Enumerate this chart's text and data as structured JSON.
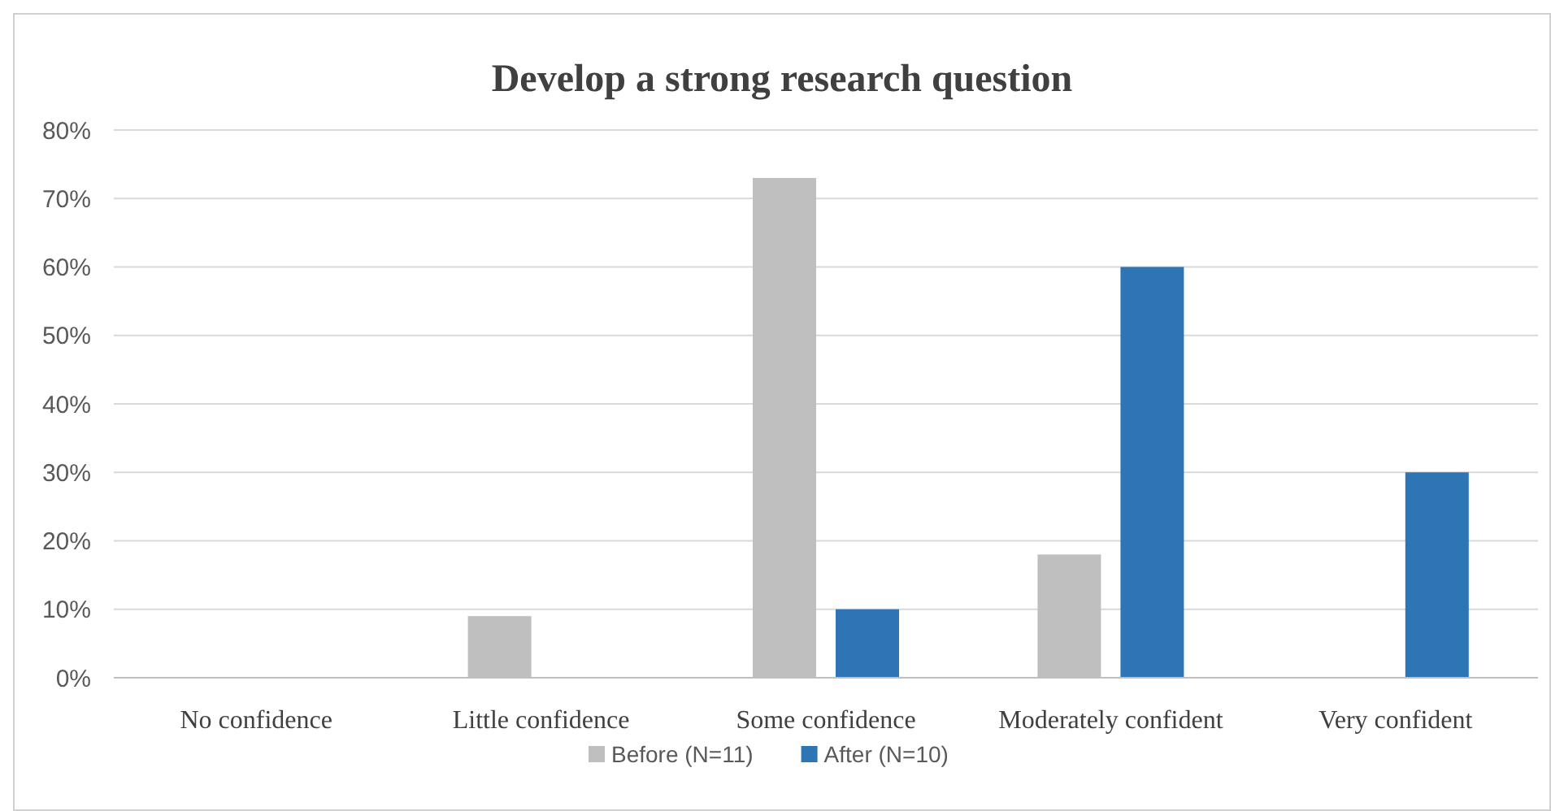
{
  "chart_data": {
    "type": "bar",
    "title": "Develop a strong research question",
    "categories": [
      "No confidence",
      "Little confidence",
      "Some confidence",
      "Moderately confident",
      "Very confident"
    ],
    "series": [
      {
        "name": "Before (N=11)",
        "color": "#bfbfbf",
        "values": [
          0,
          9,
          73,
          18,
          0
        ]
      },
      {
        "name": "After (N=10)",
        "color": "#2e75b6",
        "values": [
          0,
          0,
          10,
          60,
          30
        ]
      }
    ],
    "ylim": [
      0,
      80
    ],
    "yticks": [
      {
        "value": 0,
        "label": "0%"
      },
      {
        "value": 10,
        "label": "10%"
      },
      {
        "value": 20,
        "label": "20%"
      },
      {
        "value": 30,
        "label": "30%"
      },
      {
        "value": 40,
        "label": "40%"
      },
      {
        "value": 50,
        "label": "50%"
      },
      {
        "value": 60,
        "label": "60%"
      },
      {
        "value": 70,
        "label": "70%"
      },
      {
        "value": 80,
        "label": "80%"
      }
    ],
    "grid": "y",
    "legend": "bottom"
  }
}
